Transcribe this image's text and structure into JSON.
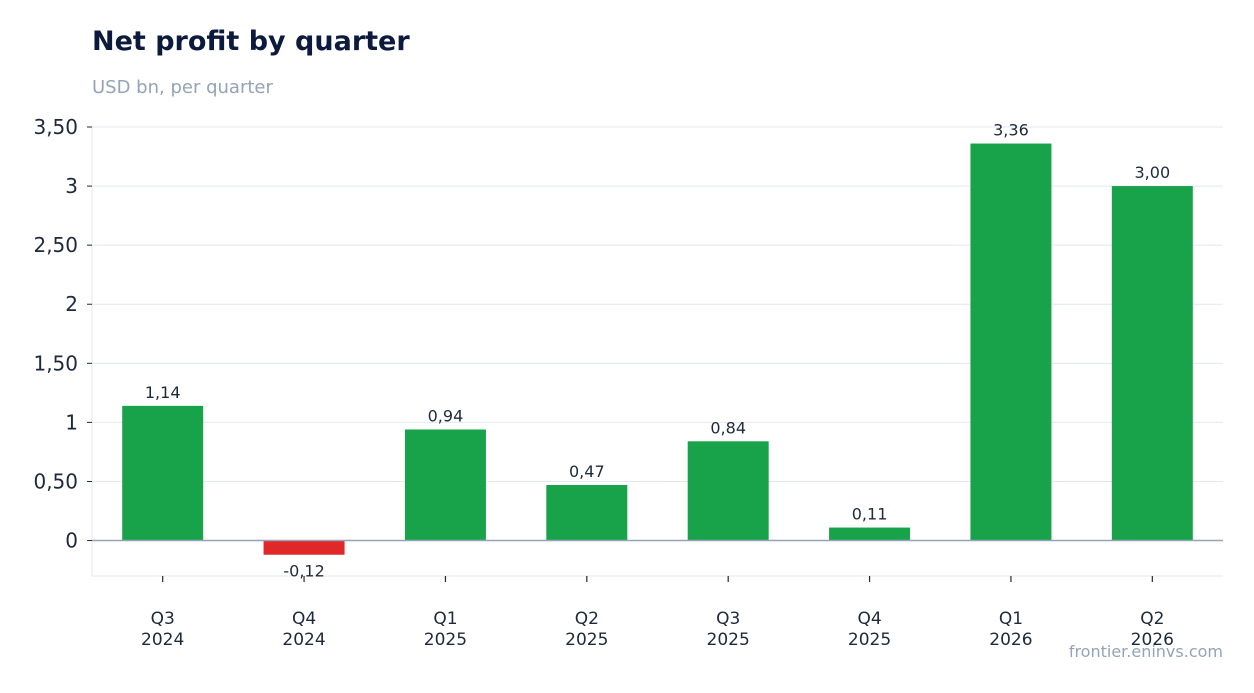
{
  "title": "Net profit by quarter",
  "subtitle": "USD bn, per quarter",
  "source": "frontier.eninvs.com",
  "colors": {
    "positive": "#18a34a",
    "negative": "#e02828",
    "grid": "#e2e8f0",
    "baseline": "#94a3b8",
    "text": "#1e293b"
  },
  "chart_data": {
    "type": "bar",
    "categories": [
      [
        "Q3",
        "2024"
      ],
      [
        "Q4",
        "2024"
      ],
      [
        "Q1",
        "2025"
      ],
      [
        "Q2",
        "2025"
      ],
      [
        "Q3",
        "2025"
      ],
      [
        "Q4",
        "2025"
      ],
      [
        "Q1",
        "2026"
      ],
      [
        "Q2",
        "2026"
      ]
    ],
    "values": [
      1.14,
      -0.12,
      0.94,
      0.47,
      0.84,
      0.11,
      3.36,
      3.0
    ],
    "value_labels": [
      "1,14",
      "-0,12",
      "0,94",
      "0,47",
      "0,84",
      "0,11",
      "3,36",
      "3,00"
    ],
    "yticks": [
      0,
      0.5,
      1,
      1.5,
      2,
      2.5,
      3,
      3.5
    ],
    "ytick_labels": [
      "0",
      "0,50",
      "1",
      "1,50",
      "2",
      "2,50",
      "3",
      "3,50"
    ],
    "ylim": [
      -0.3,
      3.5
    ],
    "grid": true,
    "legend": "none"
  }
}
